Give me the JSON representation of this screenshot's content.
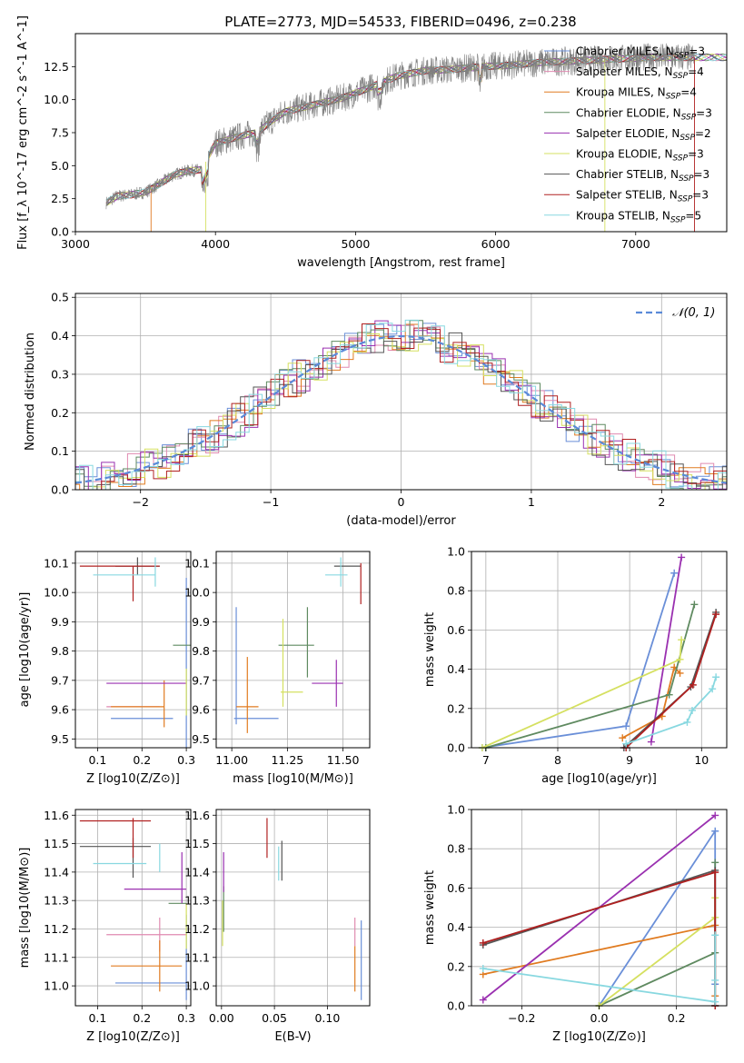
{
  "figure": {
    "title": "PLATE=2773, MJD=54533, FIBERID=0496, z=0.238"
  },
  "legend_entries": [
    {
      "label": "Chabrier MILES, N_SSP=3",
      "color": "#6a8fd8"
    },
    {
      "label": "Salpeter MILES, N_SSP=4",
      "color": "#e08ab0"
    },
    {
      "label": "Kroupa MILES, N_SSP=4",
      "color": "#e07b20"
    },
    {
      "label": "Chabrier ELODIE, N_SSP=3",
      "color": "#5f8a60"
    },
    {
      "label": "Salpeter ELODIE, N_SSP=2",
      "color": "#9a30b0"
    },
    {
      "label": "Kroupa ELODIE, N_SSP=3",
      "color": "#d5e060"
    },
    {
      "label": "Chabrier STELIB, N_SSP=3",
      "color": "#555555"
    },
    {
      "label": "Salpeter STELIB, N_SSP=3",
      "color": "#b02020"
    },
    {
      "label": "Kroupa STELIB, N_SSP=5",
      "color": "#88d8e0"
    }
  ],
  "chart_data": [
    {
      "id": "spectrum",
      "type": "line",
      "xlabel": "wavelength [Angstrom, rest frame]",
      "ylabel": "Flux [f_λ 10^-17 erg cm^-2 s^-1 A^-1]",
      "xlim": [
        3000,
        7650
      ],
      "ylim": [
        0,
        15
      ],
      "xticks": [
        3000,
        4000,
        5000,
        6000,
        7000
      ],
      "yticks": [
        0.0,
        2.5,
        5.0,
        7.5,
        10.0,
        12.5
      ],
      "grid": false,
      "legend_position": "top-right",
      "data_color": "#808080",
      "continuum": {
        "x": [
          3220,
          3300,
          3400,
          3500,
          3600,
          3700,
          3800,
          3900,
          4000,
          4100,
          4200,
          4300,
          4400,
          4500,
          4700,
          4900,
          5100,
          5300,
          5500,
          5700,
          5900,
          6100,
          6300,
          6500,
          6700,
          6900,
          7100,
          7300
        ],
        "y": [
          2.2,
          2.7,
          2.8,
          3.0,
          3.6,
          4.3,
          4.6,
          4.7,
          6.7,
          7.0,
          7.3,
          7.5,
          8.4,
          9.1,
          9.6,
          10.1,
          10.9,
          11.8,
          12.2,
          12.3,
          12.5,
          12.6,
          12.8,
          12.9,
          13.0,
          13.1,
          13.2,
          13.2
        ]
      }
    },
    {
      "id": "residual-hist",
      "type": "area",
      "xlabel": "(data-model)/error",
      "ylabel": "Normed distribution",
      "xlim": [
        -2.5,
        2.5
      ],
      "ylim": [
        0,
        0.51
      ],
      "xticks": [
        -2,
        -1,
        0,
        1,
        2
      ],
      "yticks": [
        0.0,
        0.1,
        0.2,
        0.3,
        0.4,
        0.5
      ],
      "grid": true,
      "legend_position": "top-right",
      "reference": {
        "label": "𝒩(0, 1)",
        "mean": 0,
        "sigma": 1,
        "color": "#5a8ad8"
      },
      "bin_width": 0.1
    },
    {
      "id": "age-vs-Z",
      "type": "scatter",
      "xlabel": "Z [log10(Z/Z⊙)]",
      "ylabel": "age  [log10(age/yr)]",
      "xlim": [
        0.05,
        0.31
      ],
      "ylim": [
        9.47,
        10.14
      ],
      "xticks": [
        0.1,
        0.2,
        0.3
      ],
      "yticks": [
        9.5,
        9.6,
        9.7,
        9.8,
        9.9,
        10.0,
        10.1
      ],
      "grid": true,
      "points": [
        {
          "series": 0,
          "x": 0.2,
          "xerr": 0.07,
          "y": 9.57,
          "yerr": 0.0
        },
        {
          "series": 0,
          "x": 0.3,
          "xerr": 0.0,
          "y": 9.75,
          "yerr": 0.3
        },
        {
          "series": 1,
          "x": 0.18,
          "xerr": 0.06,
          "y": 9.61,
          "yerr": 0.0
        },
        {
          "series": 2,
          "x": 0.19,
          "xerr": 0.06,
          "y": 9.61,
          "yerr": 0.0
        },
        {
          "series": 2,
          "x": 0.25,
          "xerr": 0.0,
          "y": 9.62,
          "yerr": 0.08
        },
        {
          "series": 3,
          "x": 0.29,
          "xerr": 0.02,
          "y": 9.82,
          "yerr": 0.0
        },
        {
          "series": 4,
          "x": 0.21,
          "xerr": 0.09,
          "y": 9.69,
          "yerr": 0.0
        },
        {
          "series": 5,
          "x": 0.3,
          "xerr": 0.0,
          "y": 9.66,
          "yerr": 0.08
        },
        {
          "series": 6,
          "x": 0.19,
          "xerr": 0.05,
          "y": 10.09,
          "yerr": 0.0
        },
        {
          "series": 6,
          "x": 0.19,
          "xerr": 0.0,
          "y": 10.09,
          "yerr": 0.03
        },
        {
          "series": 7,
          "x": 0.15,
          "xerr": 0.09,
          "y": 10.09,
          "yerr": 0.0
        },
        {
          "series": 7,
          "x": 0.18,
          "xerr": 0.0,
          "y": 10.03,
          "yerr": 0.06
        },
        {
          "series": 8,
          "x": 0.16,
          "xerr": 0.07,
          "y": 10.06,
          "yerr": 0.0
        },
        {
          "series": 8,
          "x": 0.23,
          "xerr": 0.0,
          "y": 10.07,
          "yerr": 0.05
        }
      ]
    },
    {
      "id": "age-vs-mass",
      "type": "scatter",
      "xlabel": "mass [log10(M/M⊙)]",
      "ylabel": "",
      "xlim": [
        10.93,
        11.62
      ],
      "ylim": [
        9.47,
        10.14
      ],
      "xticks": [
        11.0,
        11.25,
        11.5
      ],
      "yticks": [
        9.5,
        9.6,
        9.7,
        9.8,
        9.9,
        10.0,
        10.1
      ],
      "grid": true,
      "points": [
        {
          "series": 0,
          "x": 11.11,
          "xerr": 0.1,
          "y": 9.57,
          "yerr": 0.0
        },
        {
          "series": 0,
          "x": 11.02,
          "xerr": 0.0,
          "y": 9.75,
          "yerr": 0.2
        },
        {
          "series": 2,
          "x": 11.07,
          "xerr": 0.05,
          "y": 9.61,
          "yerr": 0.0
        },
        {
          "series": 2,
          "x": 11.07,
          "xerr": 0.0,
          "y": 9.65,
          "yerr": 0.13
        },
        {
          "series": 3,
          "x": 11.29,
          "xerr": 0.08,
          "y": 9.82,
          "yerr": 0.0
        },
        {
          "series": 3,
          "x": 11.34,
          "xerr": 0.0,
          "y": 9.83,
          "yerr": 0.12
        },
        {
          "series": 4,
          "x": 11.43,
          "xerr": 0.07,
          "y": 9.69,
          "yerr": 0.0
        },
        {
          "series": 4,
          "x": 11.47,
          "xerr": 0.0,
          "y": 9.69,
          "yerr": 0.08
        },
        {
          "series": 5,
          "x": 11.27,
          "xerr": 0.05,
          "y": 9.66,
          "yerr": 0.0
        },
        {
          "series": 5,
          "x": 11.23,
          "xerr": 0.0,
          "y": 9.76,
          "yerr": 0.15
        },
        {
          "series": 6,
          "x": 11.52,
          "xerr": 0.06,
          "y": 10.09,
          "yerr": 0.0
        },
        {
          "series": 7,
          "x": 11.58,
          "xerr": 0.0,
          "y": 10.03,
          "yerr": 0.07
        },
        {
          "series": 8,
          "x": 11.47,
          "xerr": 0.05,
          "y": 10.06,
          "yerr": 0.0
        },
        {
          "series": 8,
          "x": 11.49,
          "xerr": 0.0,
          "y": 10.07,
          "yerr": 0.05
        }
      ]
    },
    {
      "id": "massweight-vs-age",
      "type": "line",
      "xlabel": "age  [log10(age/yr)]",
      "ylabel": "mass weight",
      "xlim": [
        6.8,
        10.35
      ],
      "ylim": [
        0,
        1
      ],
      "xticks": [
        7,
        8,
        9,
        10
      ],
      "yticks": [
        0.0,
        0.2,
        0.4,
        0.6,
        0.8,
        1.0
      ],
      "grid": true,
      "series": [
        {
          "series": 0,
          "x": [
            6.95,
            8.95,
            9.62
          ],
          "y": [
            0.0,
            0.11,
            0.89
          ]
        },
        {
          "series": 2,
          "x": [
            8.9,
            9.45,
            9.62,
            9.7
          ],
          "y": [
            0.05,
            0.16,
            0.41,
            0.38
          ]
        },
        {
          "series": 3,
          "x": [
            7.0,
            9.55,
            9.9
          ],
          "y": [
            0.0,
            0.27,
            0.73
          ]
        },
        {
          "series": 4,
          "x": [
            9.3,
            9.72
          ],
          "y": [
            0.03,
            0.97
          ]
        },
        {
          "series": 5,
          "x": [
            6.95,
            9.7,
            9.72
          ],
          "y": [
            0.0,
            0.45,
            0.55
          ]
        },
        {
          "series": 6,
          "x": [
            8.92,
            9.85,
            10.2
          ],
          "y": [
            0.0,
            0.31,
            0.69
          ]
        },
        {
          "series": 7,
          "x": [
            8.95,
            9.88,
            10.2
          ],
          "y": [
            0.0,
            0.32,
            0.68
          ]
        },
        {
          "series": 8,
          "x": [
            8.95,
            9.8,
            9.87,
            10.15,
            10.2
          ],
          "y": [
            0.02,
            0.13,
            0.19,
            0.3,
            0.36
          ]
        }
      ]
    },
    {
      "id": "mass-vs-Z",
      "type": "scatter",
      "xlabel": "Z [log10(Z/Z⊙)]",
      "ylabel": "mass [log10(M/M⊙)]",
      "xlim": [
        0.05,
        0.31
      ],
      "ylim": [
        10.93,
        11.62
      ],
      "xticks": [
        0.1,
        0.2,
        0.3
      ],
      "yticks": [
        11.0,
        11.1,
        11.2,
        11.3,
        11.4,
        11.5,
        11.6
      ],
      "grid": true,
      "points": [
        {
          "series": 0,
          "x": 0.22,
          "xerr": 0.08,
          "y": 11.01,
          "yerr": 0.0
        },
        {
          "series": 0,
          "x": 0.3,
          "xerr": 0.0,
          "y": 11.1,
          "yerr": 0.15
        },
        {
          "series": 1,
          "x": 0.21,
          "xerr": 0.09,
          "y": 11.18,
          "yerr": 0.0
        },
        {
          "series": 1,
          "x": 0.24,
          "xerr": 0.0,
          "y": 11.18,
          "yerr": 0.06
        },
        {
          "series": 2,
          "x": 0.21,
          "xerr": 0.08,
          "y": 11.07,
          "yerr": 0.0
        },
        {
          "series": 2,
          "x": 0.24,
          "xerr": 0.0,
          "y": 11.07,
          "yerr": 0.09
        },
        {
          "series": 3,
          "x": 0.28,
          "xerr": 0.02,
          "y": 11.29,
          "yerr": 0.0
        },
        {
          "series": 4,
          "x": 0.23,
          "xerr": 0.07,
          "y": 11.34,
          "yerr": 0.0
        },
        {
          "series": 4,
          "x": 0.29,
          "xerr": 0.0,
          "y": 11.38,
          "yerr": 0.09
        },
        {
          "series": 5,
          "x": 0.3,
          "xerr": 0.0,
          "y": 11.21,
          "yerr": 0.08
        },
        {
          "series": 6,
          "x": 0.14,
          "xerr": 0.08,
          "y": 11.49,
          "yerr": 0.0
        },
        {
          "series": 6,
          "x": 0.18,
          "xerr": 0.0,
          "y": 11.45,
          "yerr": 0.07
        },
        {
          "series": 7,
          "x": 0.14,
          "xerr": 0.08,
          "y": 11.58,
          "yerr": 0.0
        },
        {
          "series": 7,
          "x": 0.18,
          "xerr": 0.0,
          "y": 11.52,
          "yerr": 0.07
        },
        {
          "series": 8,
          "x": 0.15,
          "xerr": 0.06,
          "y": 11.43,
          "yerr": 0.0
        },
        {
          "series": 8,
          "x": 0.24,
          "xerr": 0.0,
          "y": 11.45,
          "yerr": 0.05
        }
      ]
    },
    {
      "id": "mass-vs-EBV",
      "type": "scatter",
      "xlabel": "E(B-V)",
      "ylabel": "",
      "xlim": [
        -0.005,
        0.14
      ],
      "ylim": [
        10.93,
        11.62
      ],
      "xticks": [
        0.0,
        0.05,
        0.1
      ],
      "yticks": [
        11.0,
        11.1,
        11.2,
        11.3,
        11.4,
        11.5,
        11.6
      ],
      "grid": true,
      "points": [
        {
          "series": 0,
          "x": 0.132,
          "xerr": 0.0,
          "y": 11.09,
          "yerr": 0.14
        },
        {
          "series": 2,
          "x": 0.126,
          "xerr": 0.0,
          "y": 11.06,
          "yerr": 0.08
        },
        {
          "series": 1,
          "x": 0.126,
          "xerr": 0.0,
          "y": 11.19,
          "yerr": 0.05
        },
        {
          "series": 3,
          "x": 0.002,
          "xerr": 0.0,
          "y": 11.27,
          "yerr": 0.08
        },
        {
          "series": 4,
          "x": 0.002,
          "xerr": 0.0,
          "y": 11.4,
          "yerr": 0.07
        },
        {
          "series": 5,
          "x": 0.001,
          "xerr": 0.0,
          "y": 11.22,
          "yerr": 0.08
        },
        {
          "series": 6,
          "x": 0.057,
          "xerr": 0.0,
          "y": 11.44,
          "yerr": 0.07
        },
        {
          "series": 7,
          "x": 0.043,
          "xerr": 0.0,
          "y": 11.52,
          "yerr": 0.07
        },
        {
          "series": 8,
          "x": 0.054,
          "xerr": 0.0,
          "y": 11.43,
          "yerr": 0.06
        }
      ]
    },
    {
      "id": "massweight-vs-Z",
      "type": "line",
      "xlabel": "Z [log10(Z/Z⊙)]",
      "ylabel": "mass weight",
      "xlim": [
        -0.33,
        0.33
      ],
      "ylim": [
        0,
        1
      ],
      "xticks": [
        -0.2,
        0.0,
        0.2
      ],
      "yticks": [
        0.0,
        0.2,
        0.4,
        0.6,
        0.8,
        1.0
      ],
      "grid": true,
      "series": [
        {
          "series": 0,
          "x": [
            0.0,
            0.3,
            0.3
          ],
          "y": [
            0.0,
            0.89,
            0.11
          ]
        },
        {
          "series": 2,
          "x": [
            -0.3,
            0.3,
            0.3
          ],
          "y": [
            0.16,
            0.41,
            0.05
          ]
        },
        {
          "series": 3,
          "x": [
            0.0,
            0.3,
            0.3
          ],
          "y": [
            0.0,
            0.27,
            0.73
          ]
        },
        {
          "series": 4,
          "x": [
            -0.3,
            0.3
          ],
          "y": [
            0.03,
            0.97
          ]
        },
        {
          "series": 5,
          "x": [
            0.0,
            0.3,
            0.3
          ],
          "y": [
            0.0,
            0.45,
            0.55
          ]
        },
        {
          "series": 6,
          "x": [
            -0.3,
            0.3,
            0.3
          ],
          "y": [
            0.31,
            0.69,
            0.0
          ]
        },
        {
          "series": 7,
          "x": [
            -0.3,
            0.3,
            0.3
          ],
          "y": [
            0.32,
            0.68,
            0.0
          ]
        },
        {
          "series": 8,
          "x": [
            -0.3,
            0.3,
            0.3,
            0.3
          ],
          "y": [
            0.19,
            0.02,
            0.13,
            0.36
          ]
        }
      ]
    }
  ]
}
